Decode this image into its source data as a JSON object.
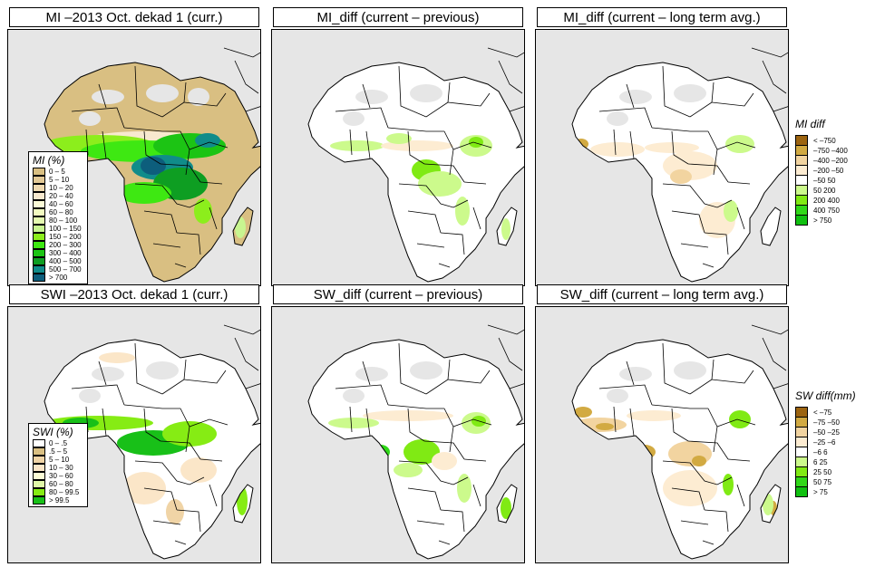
{
  "panels": [
    {
      "id": "mi-curr",
      "title": "MI –2013 Oct. dekad 1 (curr.)",
      "scheme": "mi"
    },
    {
      "id": "mi-diff-prev",
      "title": "MI_diff (current – previous)",
      "scheme": "midiff"
    },
    {
      "id": "mi-diff-lta",
      "title": "MI_diff (current – long term avg.)",
      "scheme": "midiff2"
    },
    {
      "id": "swi-curr",
      "title": "SWI –2013 Oct. dekad 1 (curr.)",
      "scheme": "swi"
    },
    {
      "id": "sw-diff-prev",
      "title": "SW_diff (current – previous)",
      "scheme": "swdiff"
    },
    {
      "id": "sw-diff-lta",
      "title": "SW_diff (current – long term avg.)",
      "scheme": "swdiff2"
    }
  ],
  "legends": {
    "mi": {
      "title": "MI (%)",
      "items": [
        {
          "label": "0 – 5",
          "color": "#d9bf82"
        },
        {
          "label": "5 – 10",
          "color": "#e3c996"
        },
        {
          "label": "10 – 20",
          "color": "#efd9b0"
        },
        {
          "label": "20 – 40",
          "color": "#f8e9cf"
        },
        {
          "label": "40 – 60",
          "color": "#fbfbd8"
        },
        {
          "label": "60 – 80",
          "color": "#f2fbc0"
        },
        {
          "label": "80 – 100",
          "color": "#e4f9b0"
        },
        {
          "label": "100 – 150",
          "color": "#c8f590"
        },
        {
          "label": "150 – 200",
          "color": "#8cee1c"
        },
        {
          "label": "200 – 300",
          "color": "#3ee812"
        },
        {
          "label": "300 – 400",
          "color": "#1cc414"
        },
        {
          "label": "400 – 500",
          "color": "#0e9e22"
        },
        {
          "label": "500 – 700",
          "color": "#108c8a"
        },
        {
          "label": "> 700",
          "color": "#0d5e7c"
        }
      ]
    },
    "swi": {
      "title": "SWI (%)",
      "items": [
        {
          "label": "0 – .5",
          "color": "#ffffff"
        },
        {
          "label": ".5 – 5",
          "color": "#d9bf82"
        },
        {
          "label": "5 – 10",
          "color": "#f0d4a6"
        },
        {
          "label": "10 – 30",
          "color": "#fbe6c8"
        },
        {
          "label": "30 – 60",
          "color": "#fcfcd6"
        },
        {
          "label": "60 – 80",
          "color": "#e0f8a8"
        },
        {
          "label": "80 – 99.5",
          "color": "#86ec14"
        },
        {
          "label": "> 99.5",
          "color": "#18c018"
        }
      ]
    },
    "midiff": {
      "title": "MI diff",
      "items": [
        {
          "label": "< –750",
          "color": "#9c6410"
        },
        {
          "label": "–750 –400",
          "color": "#d2aa42"
        },
        {
          "label": "–400 –200",
          "color": "#f2d4a0"
        },
        {
          "label": "–200 –50",
          "color": "#fdecd2"
        },
        {
          "label": "–50 50",
          "color": "#ffffff"
        },
        {
          "label": "50 200",
          "color": "#ccfa8c"
        },
        {
          "label": "200 400",
          "color": "#80ea14"
        },
        {
          "label": "400 750",
          "color": "#30d818"
        },
        {
          "label": "> 750",
          "color": "#10c010"
        }
      ]
    },
    "swdiff": {
      "title": "SW diff(mm)",
      "items": [
        {
          "label": "< –75",
          "color": "#9c6410"
        },
        {
          "label": "–75 –50",
          "color": "#d2aa42"
        },
        {
          "label": "–50 –25",
          "color": "#f2d4a0"
        },
        {
          "label": "–25 –6",
          "color": "#fdecd2"
        },
        {
          "label": "–6 6",
          "color": "#ffffff"
        },
        {
          "label": "6 25",
          "color": "#ccfa8c"
        },
        {
          "label": "25 50",
          "color": "#80ea14"
        },
        {
          "label": "50 75",
          "color": "#30d818"
        },
        {
          "label": "> 75",
          "color": "#10c010"
        }
      ]
    }
  }
}
